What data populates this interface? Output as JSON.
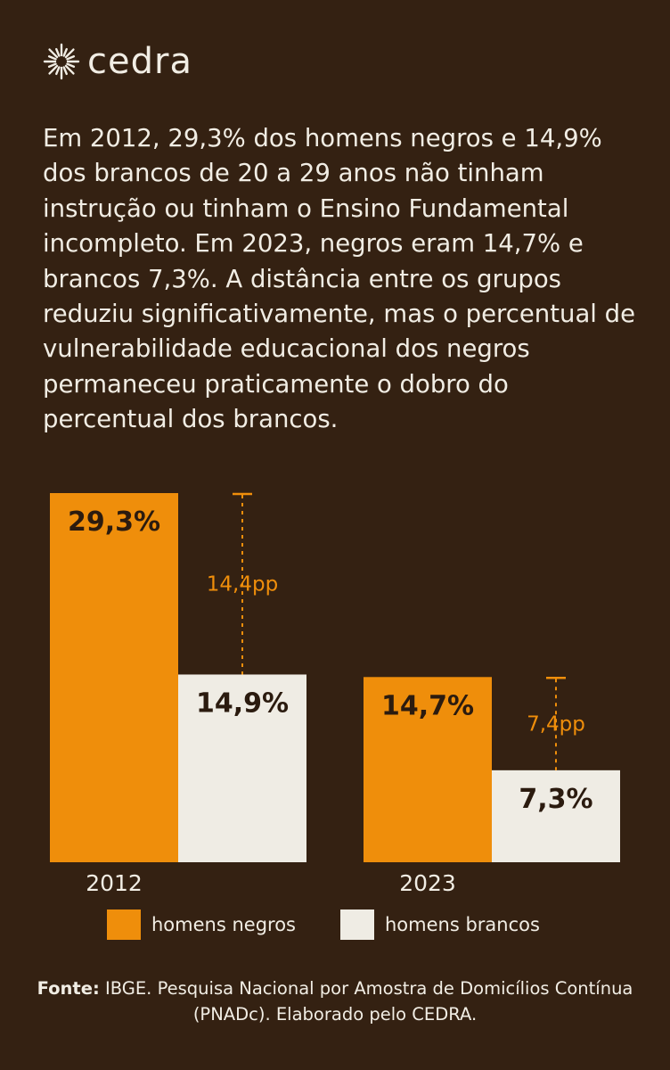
{
  "brand": {
    "name": "cedra"
  },
  "intro": "Em 2012, 29,3% dos homens negros e 14,9% dos brancos de 20 a 29 anos não tinham instrução ou tinham o Ensino Fundamental incompleto. Em 2023, negros eram 14,7% e brancos 7,3%. A distância entre os grupos reduziu significativamente, mas o percentual de vulnerabilidade educacional dos negros permaneceu praticamente o dobro do percentual dos brancos.",
  "colors": {
    "background": "#342112",
    "orange": "#ef8e0b",
    "cream": "#efece4",
    "text_light": "#f1ede4",
    "text_dark": "#2b1b0f"
  },
  "chart_data": {
    "type": "bar",
    "categories": [
      "2012",
      "2023"
    ],
    "series": [
      {
        "name": "homens negros",
        "values": [
          29.3,
          14.7
        ],
        "labels": [
          "29,3%",
          "14,7%"
        ],
        "color": "#ef8e0b"
      },
      {
        "name": "homens brancos",
        "values": [
          14.9,
          7.3
        ],
        "labels": [
          "14,9%",
          "7,3%"
        ],
        "color": "#efece4"
      }
    ],
    "gaps": [
      {
        "category": "2012",
        "value": 14.4,
        "label": "14,4pp"
      },
      {
        "category": "2023",
        "value": 7.4,
        "label": "7,4pp"
      }
    ],
    "ylim": [
      0,
      29.3
    ],
    "grid": false,
    "legend": "bottom"
  },
  "legend": [
    {
      "label": "homens negros",
      "color": "#ef8e0b"
    },
    {
      "label": "homens brancos",
      "color": "#efece4"
    }
  ],
  "source": {
    "label": "Fonte:",
    "text": " IBGE. Pesquisa Nacional por Amostra de Domicílios Contínua (PNADc). Elaborado pelo CEDRA."
  }
}
